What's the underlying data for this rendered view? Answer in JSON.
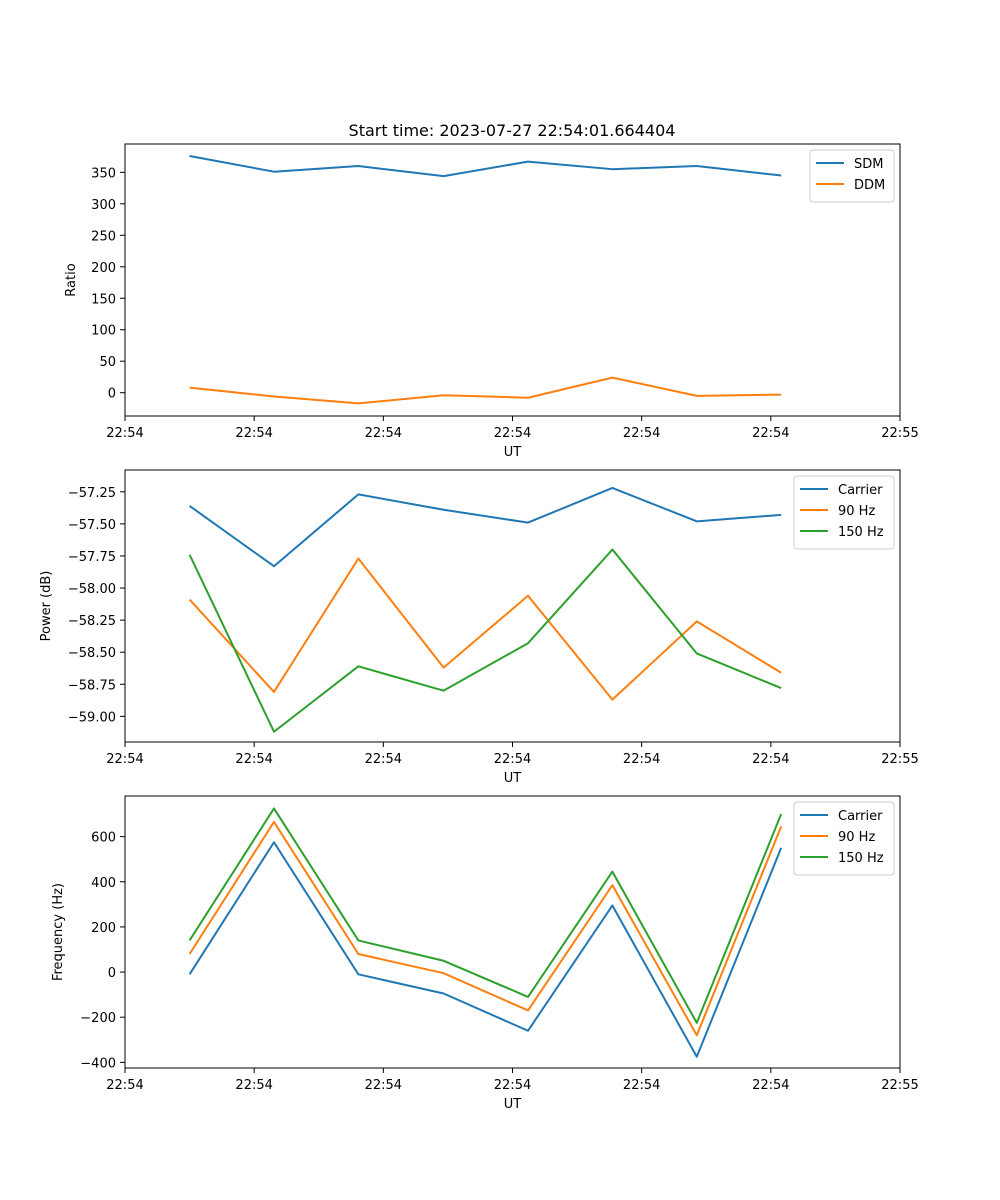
{
  "title": "Start time: 2023-07-27 22:54:01.664404",
  "colors": {
    "blue": "#1f77b4",
    "orange": "#ff7f0e",
    "green": "#2ca02c"
  },
  "chart_data": [
    {
      "type": "line",
      "xlabel": "UT",
      "ylabel": "Ratio",
      "xlim": [
        0,
        9
      ],
      "ylim": [
        -37,
        395
      ],
      "xtick_positions": [
        0,
        1.5,
        3,
        4.5,
        6,
        7.5,
        9
      ],
      "xtick_labels": [
        "22:54",
        "22:54",
        "22:54",
        "22:54",
        "22:54",
        "22:54",
        "22:55"
      ],
      "yticks": [
        0,
        50,
        100,
        150,
        200,
        250,
        300,
        350
      ],
      "ytick_labels": [
        "0",
        "50",
        "100",
        "150",
        "200",
        "250",
        "300",
        "350"
      ],
      "legend_position": "top-right",
      "x": [
        0.75,
        1.73,
        2.71,
        3.7,
        4.68,
        5.66,
        6.64,
        7.62
      ],
      "series": [
        {
          "name": "SDM",
          "color": "#1f77b4",
          "values": [
            376,
            351,
            360,
            344,
            367,
            355,
            360,
            345
          ]
        },
        {
          "name": "DDM",
          "color": "#ff7f0e",
          "values": [
            8,
            -6,
            -17,
            -4,
            -8,
            24,
            -5,
            -3
          ]
        }
      ]
    },
    {
      "type": "line",
      "xlabel": "UT",
      "ylabel": "Power (dB)",
      "xlim": [
        0,
        9
      ],
      "ylim": [
        -59.2,
        -57.08
      ],
      "xtick_positions": [
        0,
        1.5,
        3,
        4.5,
        6,
        7.5,
        9
      ],
      "xtick_labels": [
        "22:54",
        "22:54",
        "22:54",
        "22:54",
        "22:54",
        "22:54",
        "22:55"
      ],
      "yticks": [
        -59.0,
        -58.75,
        -58.5,
        -58.25,
        -58.0,
        -57.75,
        -57.5,
        -57.25
      ],
      "ytick_labels": [
        "−59.00",
        "−58.75",
        "−58.50",
        "−58.25",
        "−58.00",
        "−57.75",
        "−57.50",
        "−57.25"
      ],
      "legend_position": "top-right",
      "x": [
        0.75,
        1.73,
        2.71,
        3.7,
        4.68,
        5.66,
        6.64,
        7.62
      ],
      "series": [
        {
          "name": "Carrier",
          "color": "#1f77b4",
          "values": [
            -57.36,
            -57.83,
            -57.27,
            -57.39,
            -57.49,
            -57.22,
            -57.48,
            -57.43
          ]
        },
        {
          "name": "90 Hz",
          "color": "#ff7f0e",
          "values": [
            -58.09,
            -58.81,
            -57.77,
            -58.62,
            -58.06,
            -58.87,
            -58.26,
            -58.66
          ]
        },
        {
          "name": "150 Hz",
          "color": "#2ca02c",
          "values": [
            -57.74,
            -59.12,
            -58.61,
            -58.8,
            -58.43,
            -57.7,
            -58.51,
            -58.78
          ]
        }
      ]
    },
    {
      "type": "line",
      "xlabel": "UT",
      "ylabel": "Frequency (Hz)",
      "xlim": [
        0,
        9
      ],
      "ylim": [
        -425,
        780
      ],
      "xtick_positions": [
        0,
        1.5,
        3,
        4.5,
        6,
        7.5,
        9
      ],
      "xtick_labels": [
        "22:54",
        "22:54",
        "22:54",
        "22:54",
        "22:54",
        "22:54",
        "22:55"
      ],
      "yticks": [
        -400,
        -200,
        0,
        200,
        400,
        600
      ],
      "ytick_labels": [
        "−400",
        "−200",
        "0",
        "200",
        "400",
        "600"
      ],
      "legend_position": "top-right",
      "x": [
        0.75,
        1.73,
        2.71,
        3.7,
        4.68,
        5.66,
        6.64,
        7.62
      ],
      "series": [
        {
          "name": "Carrier",
          "color": "#1f77b4",
          "values": [
            -10,
            575,
            -10,
            -95,
            -260,
            295,
            -375,
            550
          ]
        },
        {
          "name": "90 Hz",
          "color": "#ff7f0e",
          "values": [
            80,
            665,
            80,
            -5,
            -170,
            385,
            -280,
            645
          ]
        },
        {
          "name": "150 Hz",
          "color": "#2ca02c",
          "values": [
            140,
            725,
            140,
            50,
            -110,
            445,
            -225,
            700
          ]
        }
      ]
    }
  ]
}
